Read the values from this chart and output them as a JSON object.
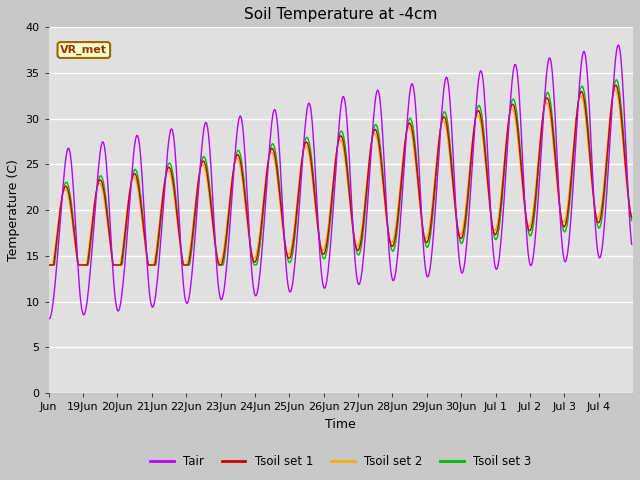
{
  "title": "Soil Temperature at -4cm",
  "xlabel": "Time",
  "ylabel": "Temperature (C)",
  "ylim": [
    0,
    40
  ],
  "fig_bg_color": "#c8c8c8",
  "plot_bg_color": "#e0e0e0",
  "tair_color": "#bb00ff",
  "tsoil1_color": "#cc0000",
  "tsoil2_color": "#ffaa00",
  "tsoil3_color": "#00bb00",
  "annotation_text": "VR_met",
  "annotation_bg": "#ffffcc",
  "annotation_border": "#996600",
  "legend_labels": [
    "Tair",
    "Tsoil set 1",
    "Tsoil set 2",
    "Tsoil set 3"
  ],
  "title_fontsize": 11,
  "axis_fontsize": 9,
  "tick_fontsize": 8
}
